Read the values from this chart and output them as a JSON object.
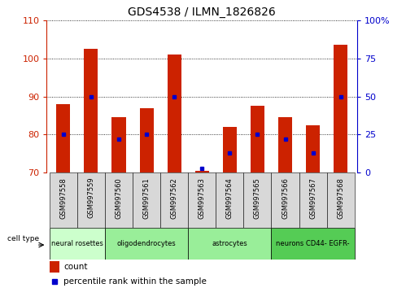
{
  "title": "GDS4538 / ILMN_1826826",
  "samples": [
    "GSM997558",
    "GSM997559",
    "GSM997560",
    "GSM997561",
    "GSM997562",
    "GSM997563",
    "GSM997564",
    "GSM997565",
    "GSM997566",
    "GSM997567",
    "GSM997568"
  ],
  "count_values": [
    88.0,
    102.5,
    84.5,
    87.0,
    101.0,
    70.5,
    82.0,
    87.5,
    84.5,
    82.5,
    103.5
  ],
  "percentile_values": [
    25,
    50,
    22,
    25,
    50,
    3,
    13,
    25,
    22,
    13,
    50
  ],
  "ylim_left": [
    70,
    110
  ],
  "ylim_right": [
    0,
    100
  ],
  "yticks_left": [
    70,
    80,
    90,
    100,
    110
  ],
  "yticks_right": [
    0,
    25,
    50,
    75,
    100
  ],
  "bar_color": "#cc2200",
  "percentile_color": "#0000cc",
  "group_bounds": [
    -0.5,
    1.5,
    4.5,
    7.5,
    10.5
  ],
  "group_labels": [
    "neural rosettes",
    "oligodendrocytes",
    "astrocytes",
    "neurons CD44- EGFR-"
  ],
  "group_colors": [
    "#ccffcc",
    "#99ee99",
    "#99ee99",
    "#55cc55"
  ],
  "legend_count_label": "count",
  "legend_pct_label": "percentile rank within the sample",
  "bar_width": 0.5,
  "right_axis_color": "#0000cc",
  "tick_label_color": "#dddddd"
}
